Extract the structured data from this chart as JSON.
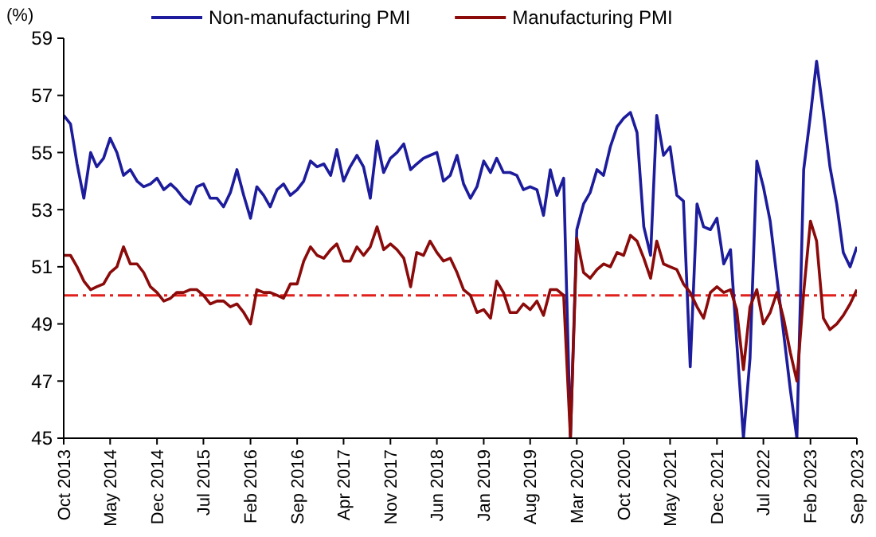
{
  "chart_data": {
    "type": "line",
    "ylabel": "(%)",
    "legend": "top",
    "grid": false,
    "line_style": "solid",
    "x": [
      "2013-10",
      "2013-11",
      "2013-12",
      "2014-01",
      "2014-02",
      "2014-03",
      "2014-04",
      "2014-05",
      "2014-06",
      "2014-07",
      "2014-08",
      "2014-09",
      "2014-10",
      "2014-11",
      "2014-12",
      "2015-01",
      "2015-02",
      "2015-03",
      "2015-04",
      "2015-05",
      "2015-06",
      "2015-07",
      "2015-08",
      "2015-09",
      "2015-10",
      "2015-11",
      "2015-12",
      "2016-01",
      "2016-02",
      "2016-03",
      "2016-04",
      "2016-05",
      "2016-06",
      "2016-07",
      "2016-08",
      "2016-09",
      "2016-10",
      "2016-11",
      "2016-12",
      "2017-01",
      "2017-02",
      "2017-03",
      "2017-04",
      "2017-05",
      "2017-06",
      "2017-07",
      "2017-08",
      "2017-09",
      "2017-10",
      "2017-11",
      "2017-12",
      "2018-01",
      "2018-02",
      "2018-03",
      "2018-04",
      "2018-05",
      "2018-06",
      "2018-07",
      "2018-08",
      "2018-09",
      "2018-10",
      "2018-11",
      "2018-12",
      "2019-01",
      "2019-02",
      "2019-03",
      "2019-04",
      "2019-05",
      "2019-06",
      "2019-07",
      "2019-08",
      "2019-09",
      "2019-10",
      "2019-11",
      "2019-12",
      "2020-01",
      "2020-02",
      "2020-03",
      "2020-04",
      "2020-05",
      "2020-06",
      "2020-07",
      "2020-08",
      "2020-09",
      "2020-10",
      "2020-11",
      "2020-12",
      "2021-01",
      "2021-02",
      "2021-03",
      "2021-04",
      "2021-05",
      "2021-06",
      "2021-07",
      "2021-08",
      "2021-09",
      "2021-10",
      "2021-11",
      "2021-12",
      "2022-01",
      "2022-02",
      "2022-03",
      "2022-04",
      "2022-05",
      "2022-06",
      "2022-07",
      "2022-08",
      "2022-09",
      "2022-10",
      "2022-11",
      "2022-12",
      "2023-01",
      "2023-02",
      "2023-03",
      "2023-04",
      "2023-05",
      "2023-06",
      "2023-07",
      "2023-08",
      "2023-09"
    ],
    "xlim": [
      "2013-10",
      "2023-09"
    ],
    "xticks": [
      {
        "value": "2013-10",
        "label": "Oct 2013"
      },
      {
        "value": "2014-05",
        "label": "May 2014"
      },
      {
        "value": "2014-12",
        "label": "Dec 2014"
      },
      {
        "value": "2015-07",
        "label": "Jul 2015"
      },
      {
        "value": "2016-02",
        "label": "Feb 2016"
      },
      {
        "value": "2016-09",
        "label": "Sep 2016"
      },
      {
        "value": "2017-04",
        "label": "Apr 2017"
      },
      {
        "value": "2017-11",
        "label": "Nov 2017"
      },
      {
        "value": "2018-06",
        "label": "Jun 2018"
      },
      {
        "value": "2019-01",
        "label": "Jan 2019"
      },
      {
        "value": "2019-08",
        "label": "Aug 2019"
      },
      {
        "value": "2020-03",
        "label": "Mar 2020"
      },
      {
        "value": "2020-10",
        "label": "Oct 2020"
      },
      {
        "value": "2021-05",
        "label": "May 2021"
      },
      {
        "value": "2021-12",
        "label": "Dec 2021"
      },
      {
        "value": "2022-07",
        "label": "Jul 2022"
      },
      {
        "value": "2023-02",
        "label": "Feb 2023"
      },
      {
        "value": "2023-09",
        "label": "Sep 2023"
      }
    ],
    "ylim": [
      45,
      59
    ],
    "yticks": [
      45,
      47,
      49,
      51,
      53,
      55,
      57,
      59
    ],
    "ref_lines": [
      {
        "axis": "y",
        "value": 50,
        "color": "#e0201c",
        "line_style": "dashed"
      }
    ],
    "series": [
      {
        "name": "Non-manufacturing PMI",
        "color": "#1c1c9c",
        "values": [
          56.3,
          56.0,
          54.6,
          53.4,
          55.0,
          54.5,
          54.8,
          55.5,
          55.0,
          54.2,
          54.4,
          54.0,
          53.8,
          53.9,
          54.1,
          53.7,
          53.9,
          53.7,
          53.4,
          53.2,
          53.8,
          53.9,
          53.4,
          53.4,
          53.1,
          53.6,
          54.4,
          53.5,
          52.7,
          53.8,
          53.5,
          53.1,
          53.7,
          53.9,
          53.5,
          53.7,
          54.0,
          54.7,
          54.5,
          54.6,
          54.2,
          55.1,
          54.0,
          54.5,
          54.9,
          54.5,
          53.4,
          55.4,
          54.3,
          54.8,
          55.0,
          55.3,
          54.4,
          54.6,
          54.8,
          54.9,
          55.0,
          54.0,
          54.2,
          54.9,
          53.9,
          53.4,
          53.8,
          54.7,
          54.3,
          54.8,
          54.3,
          54.3,
          54.2,
          53.7,
          53.8,
          53.7,
          52.8,
          54.4,
          53.5,
          54.1,
          45,
          52.3,
          53.2,
          53.6,
          54.4,
          54.2,
          55.2,
          55.9,
          56.2,
          56.4,
          55.7,
          52.4,
          51.4,
          56.3,
          54.9,
          55.2,
          53.5,
          53.3,
          47.5,
          53.2,
          52.4,
          52.3,
          52.7,
          51.1,
          51.6,
          48.4,
          45,
          47.8,
          54.7,
          53.8,
          52.6,
          50.6,
          48.7,
          46.7,
          45,
          54.4,
          56.3,
          58.2,
          56.4,
          54.5,
          53.2,
          51.5,
          51.0,
          51.7
        ]
      },
      {
        "name": "Manufacturing PMI",
        "color": "#8b0a0a",
        "values": [
          51.4,
          51.4,
          51.0,
          50.5,
          50.2,
          50.3,
          50.4,
          50.8,
          51.0,
          51.7,
          51.1,
          51.1,
          50.8,
          50.3,
          50.1,
          49.8,
          49.9,
          50.1,
          50.1,
          50.2,
          50.2,
          50.0,
          49.7,
          49.8,
          49.8,
          49.6,
          49.7,
          49.4,
          49.0,
          50.2,
          50.1,
          50.1,
          50.0,
          49.9,
          50.4,
          50.4,
          51.2,
          51.7,
          51.4,
          51.3,
          51.6,
          51.8,
          51.2,
          51.2,
          51.7,
          51.4,
          51.7,
          52.4,
          51.6,
          51.8,
          51.6,
          51.3,
          50.3,
          51.5,
          51.4,
          51.9,
          51.5,
          51.2,
          51.3,
          50.8,
          50.2,
          50.0,
          49.4,
          49.5,
          49.2,
          50.5,
          50.1,
          49.4,
          49.4,
          49.7,
          49.5,
          49.8,
          49.3,
          50.2,
          50.2,
          50.0,
          45,
          52.0,
          50.8,
          50.6,
          50.9,
          51.1,
          51.0,
          51.5,
          51.4,
          52.1,
          51.9,
          51.3,
          50.6,
          51.9,
          51.1,
          51.0,
          50.9,
          50.4,
          50.1,
          49.6,
          49.2,
          50.1,
          50.3,
          50.1,
          50.2,
          49.5,
          47.4,
          49.6,
          50.2,
          49.0,
          49.4,
          50.1,
          49.2,
          48.0,
          47.0,
          50.1,
          52.6,
          51.9,
          49.2,
          48.8,
          49.0,
          49.3,
          49.7,
          50.2
        ]
      }
    ]
  }
}
